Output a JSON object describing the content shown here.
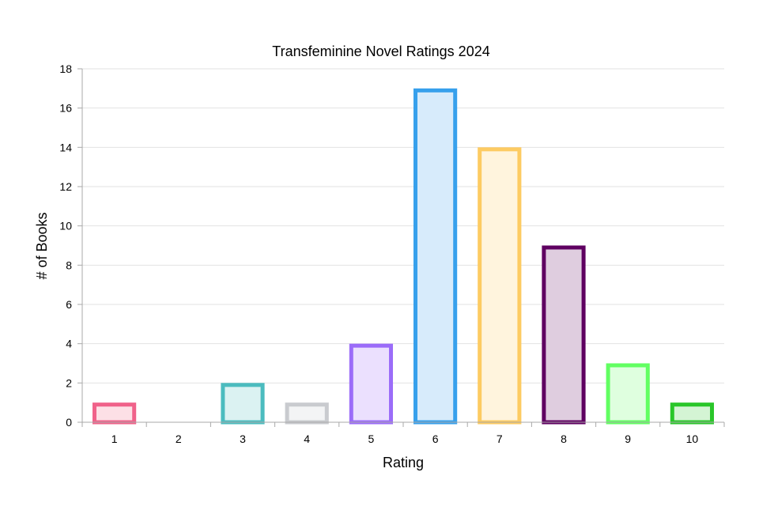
{
  "chart_data": {
    "type": "bar",
    "title": "Transfeminine Novel Ratings 2024",
    "xlabel": "Rating",
    "ylabel": "# of Books",
    "categories": [
      "1",
      "2",
      "3",
      "4",
      "5",
      "6",
      "7",
      "8",
      "9",
      "10"
    ],
    "values": [
      1,
      0,
      2,
      1,
      4,
      17,
      14,
      9,
      3,
      1
    ],
    "ylim": [
      0,
      18
    ],
    "yticks": [
      0,
      2,
      4,
      6,
      8,
      10,
      12,
      14,
      16,
      18
    ],
    "grid": true,
    "legend": "none",
    "colors": {
      "border": [
        "#f0628a",
        "#c96d47",
        "#4bbcbf",
        "#c9cbcf",
        "#9b6cf9",
        "#37a0ec",
        "#fdcb62",
        "#5f0061",
        "#62ff62",
        "#2ac62a"
      ],
      "fill": [
        "#fde0e6",
        "#f4e2d8",
        "#dbf2f2",
        "#f3f4f5",
        "#ebe0fe",
        "#d7ebfb",
        "#fff4dd",
        "#dfcddf",
        "#dfffdf",
        "#d4f4d4"
      ]
    }
  }
}
